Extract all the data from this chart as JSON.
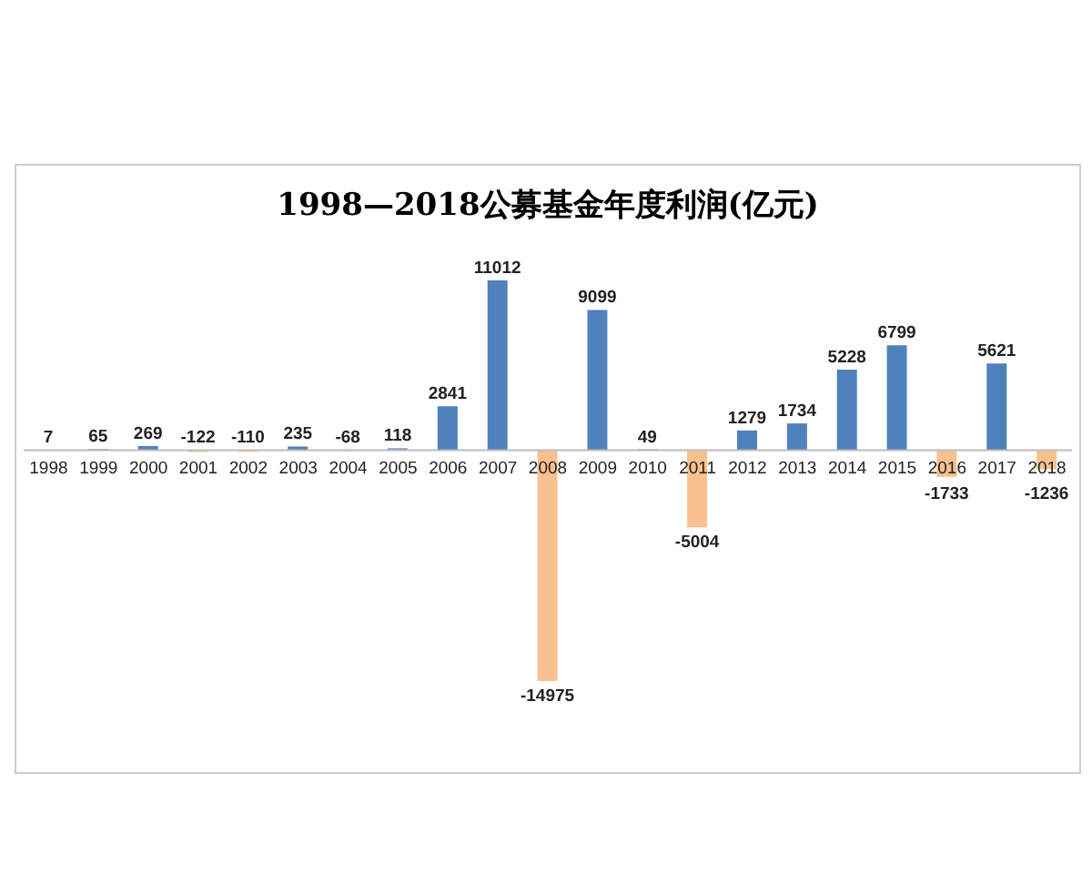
{
  "chart_data": {
    "type": "bar",
    "title": "1998—2018公募基金年度利润(亿元)",
    "categories": [
      "1998",
      "1999",
      "2000",
      "2001",
      "2002",
      "2003",
      "2004",
      "2005",
      "2006",
      "2007",
      "2008",
      "2009",
      "2010",
      "2011",
      "2012",
      "2013",
      "2014",
      "2015",
      "2016",
      "2017",
      "2018"
    ],
    "values": [
      7,
      65,
      269,
      -122,
      -110,
      235,
      -68,
      118,
      2841,
      11012,
      -14975,
      9099,
      49,
      -5004,
      1279,
      1734,
      5228,
      6799,
      -1733,
      5621,
      -1236
    ],
    "colors": [
      "#4f81bd",
      "#4f81bd",
      "#4f81bd",
      "#f9c18f",
      "#f9c18f",
      "#4f81bd",
      "#f9c18f",
      "#4f81bd",
      "#4f81bd",
      "#4f81bd",
      "#f9c18f",
      "#4f81bd",
      "#4f81bd",
      "#f9c18f",
      "#4f81bd",
      "#4f81bd",
      "#4f81bd",
      "#4f81bd",
      "#f9c18f",
      "#4f81bd",
      "#f9c18f"
    ],
    "data_labels": true
  }
}
